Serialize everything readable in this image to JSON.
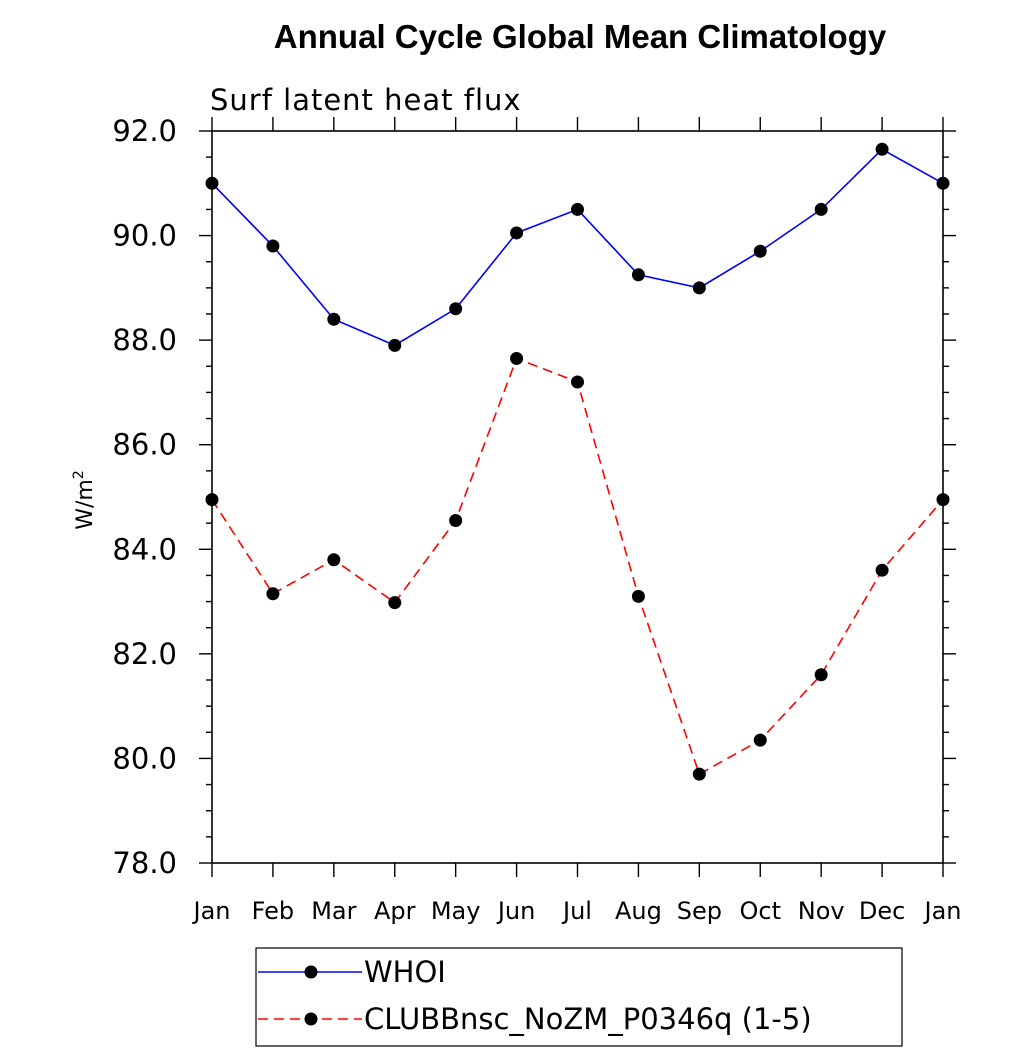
{
  "chart_data": {
    "type": "line",
    "title": "Annual Cycle Global Mean Climatology",
    "subtitle": "Surf latent heat flux",
    "ylabel": "W/m",
    "ylabel_superscript": "2",
    "xlabel": "",
    "categories": [
      "Jan",
      "Feb",
      "Mar",
      "Apr",
      "May",
      "Jun",
      "Jul",
      "Aug",
      "Sep",
      "Oct",
      "Nov",
      "Dec",
      "Jan"
    ],
    "ylim": [
      78.0,
      92.0
    ],
    "yticks": [
      78.0,
      80.0,
      82.0,
      84.0,
      86.0,
      88.0,
      90.0,
      92.0
    ],
    "ytick_labels": [
      "78.0",
      "80.0",
      "82.0",
      "84.0",
      "86.0",
      "88.0",
      "90.0",
      "92.0"
    ],
    "grid": false,
    "legend_position": "bottom",
    "series": [
      {
        "name": "WHOI",
        "color": "#0000ff",
        "dash": "solid",
        "values": [
          91.0,
          89.8,
          88.4,
          87.9,
          88.6,
          90.05,
          90.5,
          89.25,
          89.0,
          89.7,
          90.5,
          91.65,
          91.0
        ]
      },
      {
        "name": "CLUBBnsc_NoZM_P0346q (1-5)",
        "color": "#ff0000",
        "dash": "dashed",
        "values": [
          84.95,
          83.15,
          83.8,
          82.98,
          84.55,
          87.65,
          87.2,
          83.1,
          79.7,
          80.35,
          81.6,
          83.6,
          84.95
        ]
      }
    ]
  }
}
